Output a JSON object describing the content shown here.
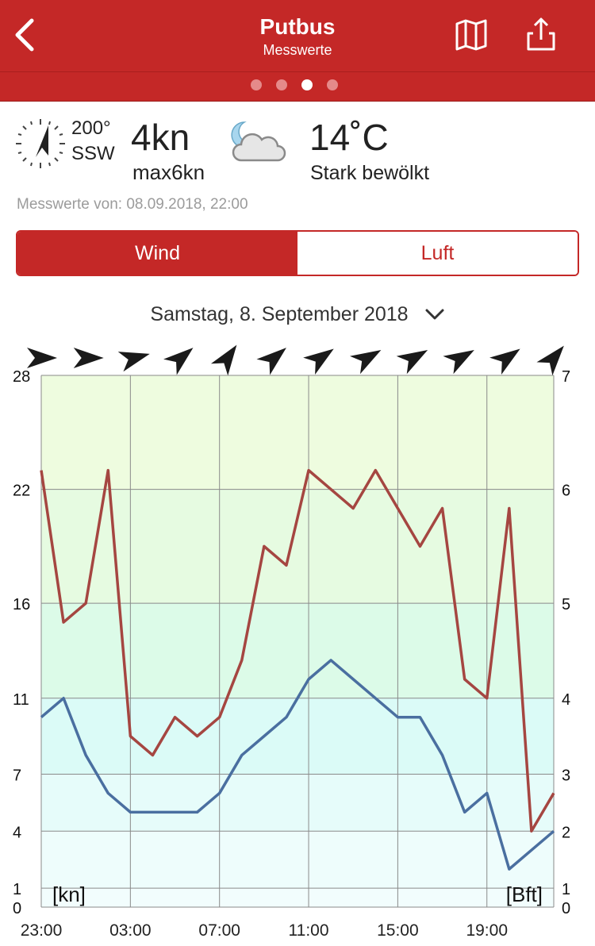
{
  "header": {
    "title": "Putbus",
    "subtitle": "Messwerte",
    "page_dots": 4,
    "active_dot": 2,
    "brand_color": "#c42827"
  },
  "current": {
    "wind_degrees": "200°",
    "wind_direction": "SSW",
    "wind_speed": "4kn",
    "wind_max": "max6kn",
    "weather_icon": "moon-cloud-icon",
    "temperature": "14˚C",
    "condition": "Stark bewölkt",
    "measured_at": "Messwerte von: 08.09.2018, 22:00"
  },
  "segment": {
    "options": [
      "Wind",
      "Luft"
    ],
    "selected": "Wind"
  },
  "date_selector": {
    "label": "Samstag, 8. September 2018"
  },
  "chart_data": {
    "type": "line",
    "x": [
      "23:00",
      "00:00",
      "01:00",
      "02:00",
      "03:00",
      "04:00",
      "05:00",
      "06:00",
      "07:00",
      "08:00",
      "09:00",
      "10:00",
      "11:00",
      "12:00",
      "13:00",
      "14:00",
      "15:00",
      "16:00",
      "17:00",
      "18:00",
      "19:00",
      "20:00",
      "21:00",
      "22:00"
    ],
    "x_tick_labels": [
      "23:00",
      "03:00",
      "07:00",
      "11:00",
      "15:00",
      "19:00"
    ],
    "series": [
      {
        "color": "#a54641",
        "values": [
          23,
          15,
          16,
          23,
          9,
          8,
          10,
          9,
          10,
          13,
          19,
          18,
          23,
          22,
          21,
          23,
          21,
          19,
          21,
          12,
          11,
          21,
          4,
          6
        ]
      },
      {
        "color": "#4a6fa0",
        "values": [
          10,
          11,
          8,
          6,
          5,
          5,
          5,
          5,
          6,
          8,
          9,
          10,
          12,
          13,
          12,
          11,
          10,
          10,
          8,
          5,
          6,
          2,
          3,
          4
        ]
      }
    ],
    "wind_arrow_bearings": [
      0,
      0,
      15,
      40,
      55,
      40,
      35,
      30,
      30,
      30,
      35,
      50
    ],
    "y_left_ticks": [
      0,
      1,
      4,
      7,
      11,
      16,
      22,
      28
    ],
    "y_right_ticks": [
      {
        "kn": 0,
        "label": "0"
      },
      {
        "kn": 1,
        "label": "1"
      },
      {
        "kn": 4,
        "label": "2"
      },
      {
        "kn": 7,
        "label": "3"
      },
      {
        "kn": 11,
        "label": "4"
      },
      {
        "kn": 16,
        "label": "5"
      },
      {
        "kn": 22,
        "label": "6"
      },
      {
        "kn": 28,
        "label": "7"
      }
    ],
    "left_unit": "[kn]",
    "right_unit": "[Bft]",
    "ylim": [
      0,
      28
    ],
    "grid": true,
    "band_colors": [
      {
        "from": 0,
        "to": 1,
        "color": "#f2fdfd"
      },
      {
        "from": 1,
        "to": 4,
        "color": "#eefdfc"
      },
      {
        "from": 4,
        "to": 7,
        "color": "#e6fcfa"
      },
      {
        "from": 7,
        "to": 11,
        "color": "#dbfbf7"
      },
      {
        "from": 11,
        "to": 16,
        "color": "#dcfbe8"
      },
      {
        "from": 16,
        "to": 22,
        "color": "#e6fbe1"
      },
      {
        "from": 22,
        "to": 28,
        "color": "#eefcdf"
      }
    ]
  }
}
